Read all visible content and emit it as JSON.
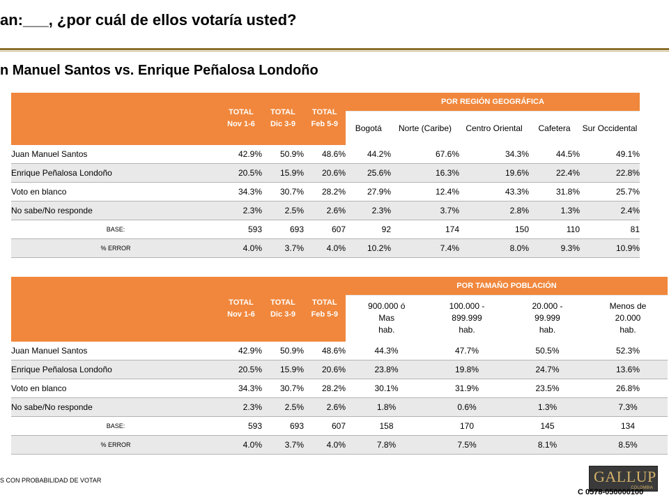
{
  "title": "an:___, ¿por cuál de ellos votaría usted?",
  "subtitle": "n Manuel Santos vs. Enrique Peñalosa Londoño",
  "totals_headers": [
    {
      "l1": "TOTAL",
      "l2": "Nov 1-6"
    },
    {
      "l1": "TOTAL",
      "l2": "Dic 3-9"
    },
    {
      "l1": "TOTAL",
      "l2": "Feb 5-9"
    }
  ],
  "table1": {
    "group_header": "POR REGIÓN GEOGRÁFICA",
    "columns": [
      "Bogotá",
      "Norte (Caribe)",
      "Centro Oriental",
      "Cafetera",
      "Sur Occidental"
    ],
    "rows": [
      {
        "label": "Juan Manuel Santos",
        "values": [
          "42.9%",
          "50.9%",
          "48.6%",
          "44.2%",
          "67.6%",
          "34.3%",
          "44.5%",
          "49.1%"
        ]
      },
      {
        "label": "Enrique Peñalosa Londoño",
        "values": [
          "20.5%",
          "15.9%",
          "20.6%",
          "25.6%",
          "16.3%",
          "19.6%",
          "22.4%",
          "22.8%"
        ]
      },
      {
        "label": "Voto en blanco",
        "values": [
          "34.3%",
          "30.7%",
          "28.2%",
          "27.9%",
          "12.4%",
          "43.3%",
          "31.8%",
          "25.7%"
        ]
      },
      {
        "label": "No sabe/No responde",
        "values": [
          "2.3%",
          "2.5%",
          "2.6%",
          "2.3%",
          "3.7%",
          "2.8%",
          "1.3%",
          "2.4%"
        ]
      },
      {
        "label": "BASE:",
        "values": [
          "593",
          "693",
          "607",
          "92",
          "174",
          "150",
          "110",
          "81"
        ]
      },
      {
        "label": "% ERROR",
        "values": [
          "4.0%",
          "3.7%",
          "4.0%",
          "10.2%",
          "7.4%",
          "8.0%",
          "9.3%",
          "10.9%"
        ]
      }
    ]
  },
  "table2": {
    "group_header": "POR TAMAÑO POBLACIÓN",
    "columns": [
      {
        "l1": "900.000 ó",
        "l2": "Mas",
        "l3": "hab."
      },
      {
        "l1": "100.000 -",
        "l2": "899.999",
        "l3": "hab."
      },
      {
        "l1": "20.000 -",
        "l2": "99.999",
        "l3": "hab."
      },
      {
        "l1": "Menos de",
        "l2": "20.000",
        "l3": "hab."
      }
    ],
    "rows": [
      {
        "label": "Juan Manuel Santos",
        "values": [
          "42.9%",
          "50.9%",
          "48.6%",
          "44.3%",
          "47.7%",
          "50.5%",
          "52.3%"
        ]
      },
      {
        "label": "Enrique Peñalosa Londoño",
        "values": [
          "20.5%",
          "15.9%",
          "20.6%",
          "23.8%",
          "19.8%",
          "24.7%",
          "13.6%"
        ]
      },
      {
        "label": "Voto en blanco",
        "values": [
          "34.3%",
          "30.7%",
          "28.2%",
          "30.1%",
          "31.9%",
          "23.5%",
          "26.8%"
        ]
      },
      {
        "label": "No sabe/No responde",
        "values": [
          "2.3%",
          "2.5%",
          "2.6%",
          "1.8%",
          "0.6%",
          "1.3%",
          "7.3%"
        ]
      },
      {
        "label": "BASE:",
        "values": [
          "593",
          "693",
          "607",
          "158",
          "170",
          "145",
          "134"
        ]
      },
      {
        "label": "% ERROR",
        "values": [
          "4.0%",
          "3.7%",
          "4.0%",
          "7.8%",
          "7.5%",
          "8.1%",
          "8.5%"
        ]
      }
    ]
  },
  "footnote": "S CON PROBABILIDAD DE VOTAR",
  "logo": {
    "text": "GALLUP",
    "sub": "COLOMBIA"
  },
  "code": "C  0578-050000100",
  "colors": {
    "header_orange": "#f0873c",
    "title_rule": "#8a6f2a",
    "alt_row": "#e9e9e9"
  }
}
